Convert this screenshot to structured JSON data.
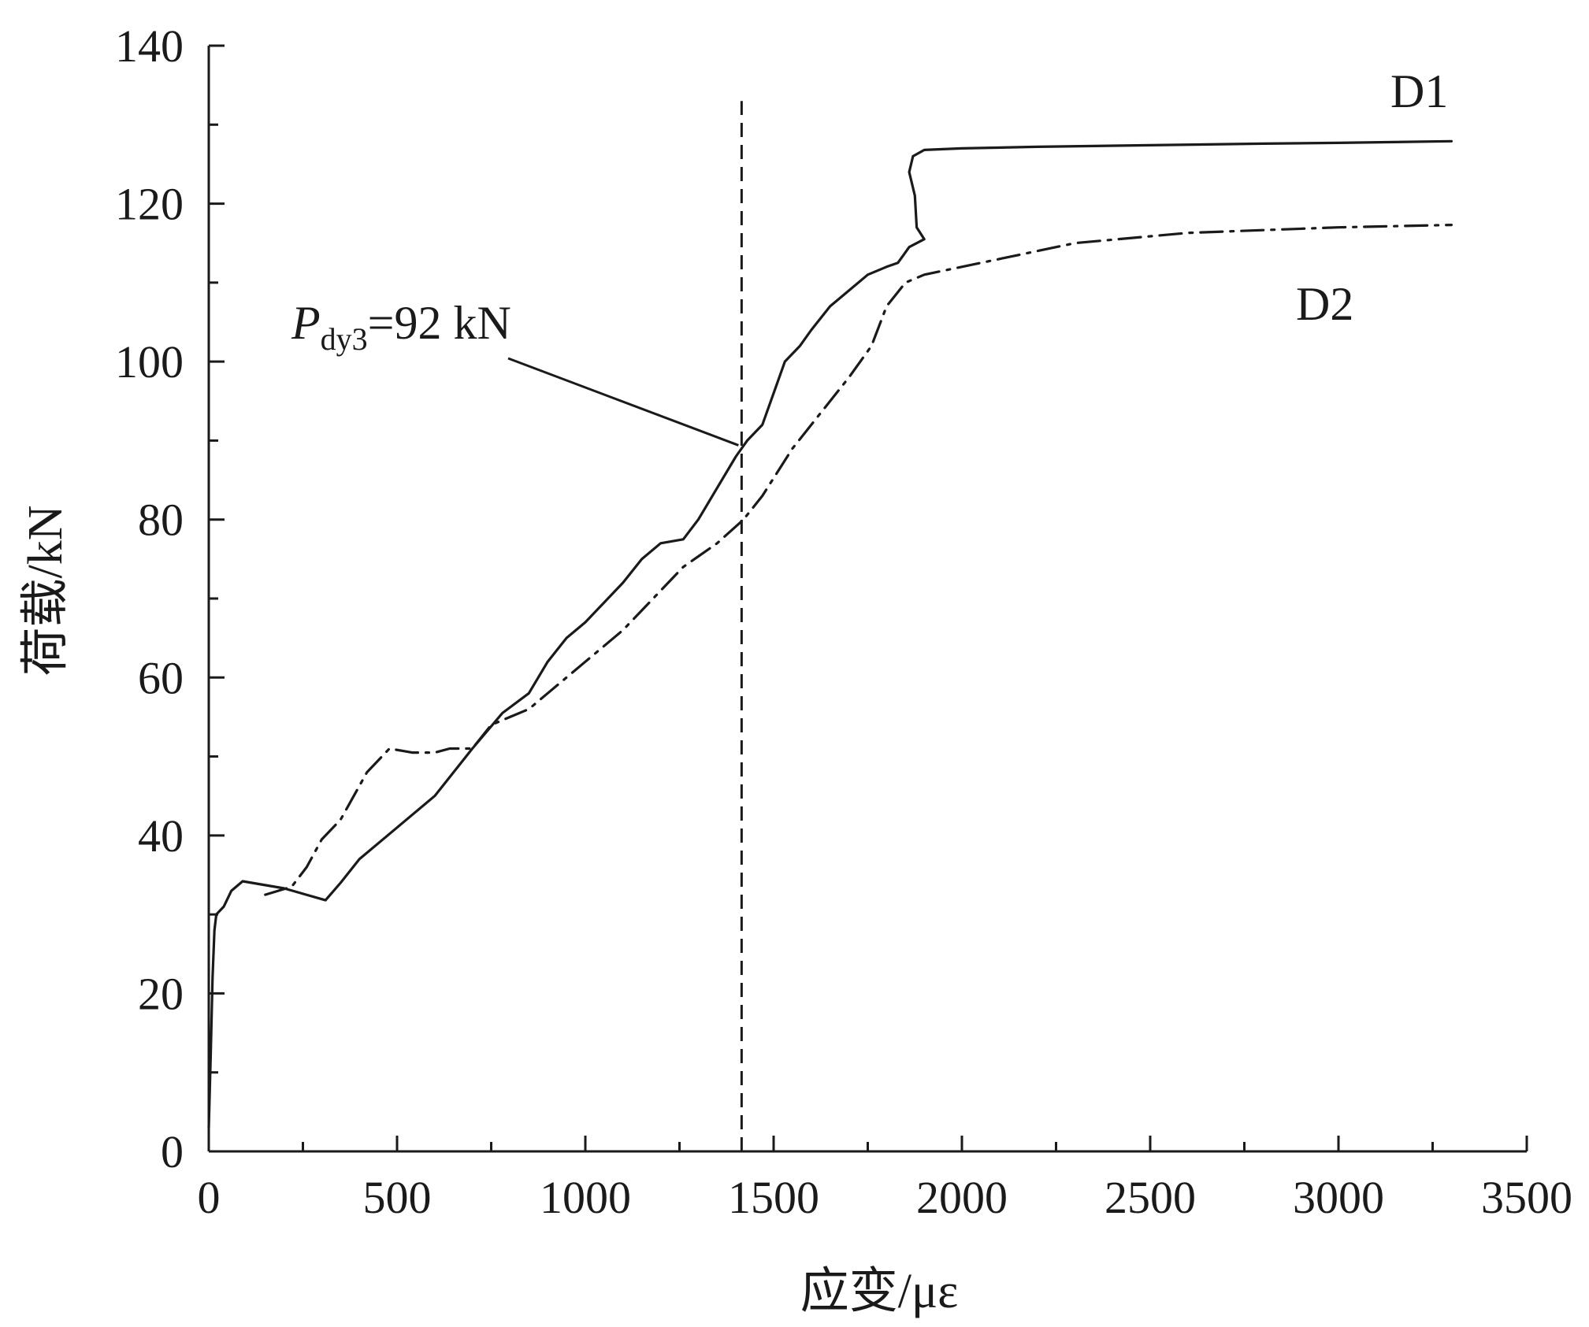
{
  "chart_data": {
    "type": "line",
    "title": "",
    "xlabel": "应变/με",
    "ylabel": "荷载/kN",
    "xlim": [
      0,
      3500
    ],
    "ylim": [
      0,
      140
    ],
    "xticks": [
      "0",
      "500",
      "1000",
      "1500",
      "2000",
      "2500",
      "3000",
      "3500"
    ],
    "yticks": [
      "0",
      "20",
      "40",
      "60",
      "80",
      "100",
      "120",
      "140"
    ],
    "xtick_values": [
      0,
      500,
      1000,
      1500,
      2000,
      2500,
      3000,
      3500
    ],
    "ytick_values": [
      0,
      20,
      40,
      60,
      80,
      100,
      120,
      140
    ],
    "grid": false,
    "legend": "none",
    "colors": {
      "line": "#1a1a1a",
      "background": "#ffffff"
    },
    "series": [
      {
        "name": "D1",
        "style": "solid",
        "points": [
          [
            0,
            3
          ],
          [
            5,
            12
          ],
          [
            10,
            22
          ],
          [
            15,
            28
          ],
          [
            20,
            30
          ],
          [
            40,
            31
          ],
          [
            60,
            33
          ],
          [
            90,
            34.2
          ],
          [
            200,
            33.3
          ],
          [
            310,
            31.8
          ],
          [
            350,
            34
          ],
          [
            400,
            37
          ],
          [
            500,
            41
          ],
          [
            600,
            45
          ],
          [
            700,
            51
          ],
          [
            780,
            55.5
          ],
          [
            850,
            58
          ],
          [
            900,
            62
          ],
          [
            950,
            65
          ],
          [
            1000,
            67
          ],
          [
            1100,
            72
          ],
          [
            1150,
            75
          ],
          [
            1200,
            77
          ],
          [
            1260,
            77.5
          ],
          [
            1300,
            80
          ],
          [
            1350,
            84
          ],
          [
            1400,
            88
          ],
          [
            1430,
            90
          ],
          [
            1470,
            92
          ],
          [
            1500,
            96
          ],
          [
            1530,
            100
          ],
          [
            1570,
            102
          ],
          [
            1600,
            104
          ],
          [
            1650,
            107
          ],
          [
            1700,
            109
          ],
          [
            1750,
            111
          ],
          [
            1800,
            112
          ],
          [
            1830,
            112.5
          ],
          [
            1860,
            114.5
          ],
          [
            1900,
            115.5
          ],
          [
            1880,
            117
          ],
          [
            1875,
            121
          ],
          [
            1860,
            124
          ],
          [
            1870,
            126
          ],
          [
            1900,
            126.8
          ],
          [
            2000,
            127
          ],
          [
            2200,
            127.2
          ],
          [
            2500,
            127.4
          ],
          [
            2800,
            127.6
          ],
          [
            3000,
            127.7
          ],
          [
            3300,
            127.9
          ]
        ]
      },
      {
        "name": "D2",
        "style": "dash-dot",
        "points": [
          [
            150,
            32.5
          ],
          [
            220,
            33.5
          ],
          [
            260,
            36
          ],
          [
            300,
            39.5
          ],
          [
            350,
            42
          ],
          [
            420,
            48
          ],
          [
            480,
            51
          ],
          [
            540,
            50.5
          ],
          [
            600,
            50.5
          ],
          [
            640,
            51
          ],
          [
            700,
            51
          ],
          [
            750,
            54
          ],
          [
            800,
            55
          ],
          [
            850,
            56
          ],
          [
            900,
            58
          ],
          [
            1000,
            62
          ],
          [
            1100,
            66
          ],
          [
            1200,
            71
          ],
          [
            1260,
            74
          ],
          [
            1350,
            77
          ],
          [
            1420,
            80
          ],
          [
            1470,
            83
          ],
          [
            1550,
            89
          ],
          [
            1600,
            92
          ],
          [
            1700,
            98
          ],
          [
            1760,
            102
          ],
          [
            1800,
            107
          ],
          [
            1850,
            110
          ],
          [
            1900,
            111
          ],
          [
            2000,
            112
          ],
          [
            2100,
            113
          ],
          [
            2300,
            115
          ],
          [
            2600,
            116.3
          ],
          [
            3000,
            117
          ],
          [
            3300,
            117.3
          ]
        ]
      }
    ],
    "reference_line": {
      "x": 1415,
      "style": "dashed",
      "ymax": 133
    },
    "annotation": {
      "text_P": "P",
      "text_sub": "dy3",
      "text_val": "=92 kN",
      "points_to": [
        1415,
        90
      ]
    },
    "series_labels": [
      {
        "text": "D1",
        "near": [
          3300,
          128
        ]
      },
      {
        "text": "D2",
        "near": [
          3300,
          117
        ]
      }
    ]
  }
}
